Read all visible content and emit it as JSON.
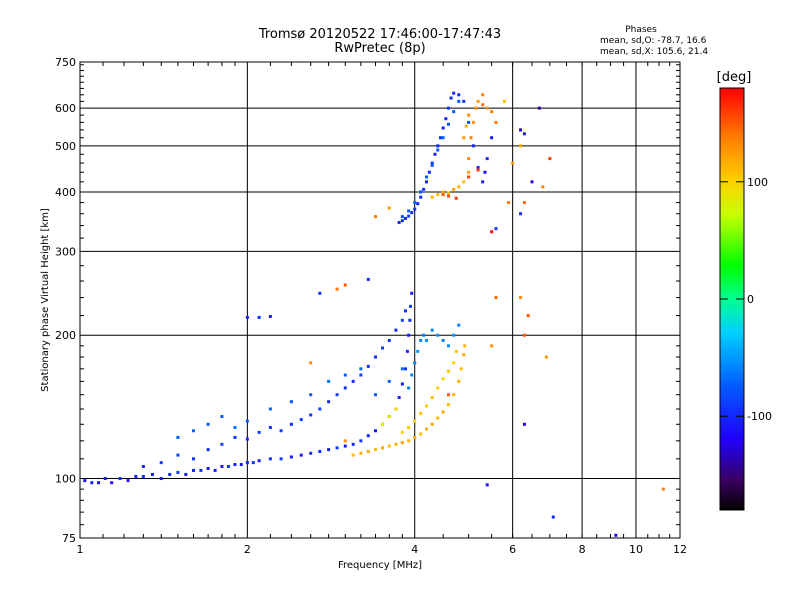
{
  "title": {
    "line1": "Tromsø 20120522 17:46:00-17:47:43",
    "line2": "RwPretec (8p)"
  },
  "phases_box": {
    "heading": "Phases",
    "line1": "mean, sd,O: -78.7, 16.6",
    "line2": "mean, sd,X: 105.6, 21.4"
  },
  "colorbar": {
    "label": "[deg]",
    "tick_labels": [
      "100",
      "0",
      "-100"
    ],
    "tick_values": [
      100,
      0,
      -100
    ],
    "range": [
      -180,
      180
    ]
  },
  "chart_data": {
    "type": "scatter",
    "xlabel": "Frequency [MHz]",
    "ylabel": "Stationary phase Virtual Height [km]",
    "xscale": "log",
    "yscale": "log",
    "xlim": [
      1,
      12
    ],
    "ylim": [
      75,
      750
    ],
    "xticks": [
      1,
      2,
      4,
      6,
      8,
      10,
      12
    ],
    "xtick_labels": [
      "1",
      "2",
      "4",
      "6",
      "8",
      "10",
      "12"
    ],
    "yticks": [
      75,
      100,
      200,
      300,
      400,
      500,
      600,
      750
    ],
    "ytick_labels": [
      "75",
      "100",
      "200",
      "300",
      "400",
      "500",
      "600",
      "750"
    ],
    "grid": true,
    "color_variable": "phase [deg]",
    "series": [
      {
        "points": [
          [
            1.02,
            99,
            -110
          ],
          [
            1.05,
            98,
            -105
          ],
          [
            1.08,
            98,
            -112
          ],
          [
            1.11,
            100,
            -108
          ],
          [
            1.14,
            98,
            -115
          ],
          [
            1.18,
            100,
            -100
          ],
          [
            1.22,
            99,
            -110
          ],
          [
            1.26,
            101,
            -105
          ],
          [
            1.3,
            101,
            -95
          ],
          [
            1.35,
            102,
            -108
          ],
          [
            1.4,
            100,
            -112
          ],
          [
            1.45,
            102,
            -100
          ],
          [
            1.5,
            103,
            -90
          ],
          [
            1.55,
            102,
            -110
          ],
          [
            1.6,
            104,
            -105
          ],
          [
            1.65,
            104,
            -95
          ],
          [
            1.7,
            105,
            -112
          ],
          [
            1.75,
            104,
            -100
          ],
          [
            1.8,
            106,
            -108
          ],
          [
            1.85,
            106,
            -90
          ],
          [
            1.9,
            107,
            -105
          ],
          [
            1.95,
            107,
            -110
          ],
          [
            2.0,
            108,
            -100
          ],
          [
            2.05,
            108,
            -95
          ],
          [
            2.1,
            109,
            -108
          ],
          [
            2.2,
            110,
            -100
          ],
          [
            2.3,
            110,
            -90
          ],
          [
            2.4,
            111,
            -105
          ],
          [
            2.5,
            112,
            -110
          ],
          [
            2.6,
            113,
            -100
          ],
          [
            2.7,
            114,
            -95
          ],
          [
            2.8,
            115,
            -105
          ],
          [
            2.9,
            116,
            -90
          ],
          [
            3.0,
            117,
            -108
          ],
          [
            3.1,
            118,
            -100
          ],
          [
            3.2,
            120,
            -95
          ],
          [
            3.3,
            123,
            -105
          ],
          [
            3.4,
            126,
            -110
          ],
          [
            3.5,
            130,
            -100
          ],
          [
            3.6,
            135,
            -95
          ],
          [
            3.7,
            140,
            -108
          ],
          [
            3.75,
            148,
            -100
          ],
          [
            3.8,
            158,
            -105
          ],
          [
            3.85,
            170,
            -95
          ],
          [
            3.88,
            185,
            -100
          ],
          [
            3.9,
            200,
            -108
          ],
          [
            3.92,
            215,
            -100
          ],
          [
            3.93,
            230,
            -90
          ],
          [
            3.95,
            245,
            -105
          ],
          [
            1.3,
            106,
            -100
          ],
          [
            1.4,
            108,
            -90
          ],
          [
            1.5,
            112,
            -85
          ],
          [
            1.6,
            110,
            -95
          ],
          [
            1.7,
            115,
            -100
          ],
          [
            1.8,
            118,
            -88
          ],
          [
            1.9,
            122,
            -95
          ],
          [
            2.0,
            121,
            -100
          ],
          [
            2.1,
            125,
            -90
          ],
          [
            2.2,
            128,
            -95
          ],
          [
            2.3,
            126,
            -85
          ],
          [
            2.4,
            130,
            -100
          ],
          [
            2.5,
            133,
            -92
          ],
          [
            2.6,
            136,
            -95
          ],
          [
            2.7,
            140,
            -88
          ],
          [
            2.8,
            145,
            -100
          ],
          [
            2.9,
            150,
            -90
          ],
          [
            3.0,
            155,
            -95
          ],
          [
            3.1,
            160,
            -100
          ],
          [
            3.2,
            165,
            -85
          ],
          [
            3.3,
            172,
            -95
          ],
          [
            3.4,
            180,
            -100
          ],
          [
            3.5,
            188,
            -90
          ],
          [
            3.6,
            195,
            -95
          ],
          [
            3.7,
            205,
            -100
          ],
          [
            3.8,
            215,
            -88
          ],
          [
            3.85,
            225,
            -95
          ],
          [
            1.5,
            122,
            -75
          ],
          [
            1.6,
            126,
            -70
          ],
          [
            1.7,
            130,
            -80
          ],
          [
            1.8,
            135,
            -72
          ],
          [
            1.9,
            128,
            -65
          ],
          [
            2.0,
            132,
            -75
          ],
          [
            2.2,
            140,
            -70
          ],
          [
            2.4,
            145,
            -80
          ],
          [
            2.6,
            150,
            -72
          ],
          [
            2.8,
            160,
            -68
          ],
          [
            3.0,
            165,
            -75
          ],
          [
            3.2,
            170,
            -70
          ],
          [
            3.4,
            150,
            -80
          ],
          [
            3.6,
            160,
            -72
          ],
          [
            3.8,
            170,
            -65
          ],
          [
            2.0,
            218,
            -100
          ],
          [
            2.1,
            218,
            -95
          ],
          [
            2.2,
            219,
            -105
          ],
          [
            3.3,
            262,
            -100
          ],
          [
            2.7,
            245,
            -95
          ],
          [
            3.9,
            155,
            -60
          ],
          [
            3.95,
            165,
            -55
          ],
          [
            4.0,
            175,
            -60
          ],
          [
            4.05,
            185,
            -50
          ],
          [
            4.1,
            195,
            -55
          ],
          [
            4.15,
            200,
            -60
          ],
          [
            4.2,
            195,
            -55
          ],
          [
            4.3,
            205,
            -58
          ],
          [
            4.4,
            200,
            -52
          ],
          [
            4.5,
            195,
            -60
          ],
          [
            4.6,
            190,
            -55
          ],
          [
            4.7,
            200,
            -50
          ],
          [
            4.8,
            210,
            -58
          ],
          [
            3.75,
            345,
            -100
          ],
          [
            3.8,
            348,
            -95
          ],
          [
            3.85,
            352,
            -105
          ],
          [
            3.9,
            356,
            -90
          ],
          [
            3.95,
            362,
            -100
          ],
          [
            4.0,
            368,
            -95
          ],
          [
            4.05,
            378,
            -105
          ],
          [
            4.1,
            390,
            -100
          ],
          [
            4.15,
            405,
            -95
          ],
          [
            4.2,
            420,
            -105
          ],
          [
            4.25,
            440,
            -100
          ],
          [
            4.3,
            460,
            -95
          ],
          [
            4.35,
            480,
            -105
          ],
          [
            4.4,
            500,
            -100
          ],
          [
            4.45,
            520,
            -95
          ],
          [
            4.5,
            545,
            -105
          ],
          [
            4.55,
            570,
            -100
          ],
          [
            4.6,
            600,
            -95
          ],
          [
            4.65,
            630,
            -100
          ],
          [
            4.7,
            645,
            -105
          ],
          [
            4.8,
            640,
            -100
          ],
          [
            4.9,
            620,
            -95
          ],
          [
            3.8,
            355,
            -80
          ],
          [
            3.9,
            365,
            -75
          ],
          [
            4.0,
            380,
            -70
          ],
          [
            4.1,
            400,
            -78
          ],
          [
            4.2,
            430,
            -72
          ],
          [
            4.3,
            455,
            -80
          ],
          [
            4.4,
            490,
            -75
          ],
          [
            4.5,
            520,
            -70
          ],
          [
            4.6,
            555,
            -78
          ],
          [
            4.7,
            590,
            -72
          ],
          [
            4.8,
            620,
            -75
          ],
          [
            5.0,
            560,
            -80
          ],
          [
            5.1,
            500,
            -100
          ],
          [
            5.2,
            450,
            -110
          ],
          [
            5.3,
            420,
            -105
          ],
          [
            5.4,
            470,
            -100
          ],
          [
            5.5,
            520,
            -108
          ],
          [
            5.35,
            440,
            -112
          ],
          [
            6.2,
            540,
            -130
          ],
          [
            6.3,
            530,
            -110
          ],
          [
            6.5,
            420,
            -125
          ],
          [
            6.7,
            600,
            -140
          ],
          [
            6.2,
            360,
            -100
          ],
          [
            5.6,
            335,
            -90
          ],
          [
            6.3,
            130,
            -120
          ],
          [
            5.4,
            97,
            -110
          ],
          [
            9.2,
            76,
            -125
          ],
          [
            7.1,
            83,
            -100
          ]
        ]
      },
      {
        "points": [
          [
            3.1,
            112,
            110
          ],
          [
            3.2,
            113,
            115
          ],
          [
            3.3,
            114,
            120
          ],
          [
            3.4,
            115,
            112
          ],
          [
            3.5,
            116,
            118
          ],
          [
            3.6,
            117,
            110
          ],
          [
            3.7,
            118,
            115
          ],
          [
            3.8,
            119,
            120
          ],
          [
            3.9,
            120,
            112
          ],
          [
            4.0,
            122,
            118
          ],
          [
            4.1,
            124,
            110
          ],
          [
            4.2,
            127,
            115
          ],
          [
            4.3,
            130,
            120
          ],
          [
            4.4,
            134,
            112
          ],
          [
            4.5,
            138,
            118
          ],
          [
            4.6,
            143,
            110
          ],
          [
            4.7,
            150,
            115
          ],
          [
            4.8,
            160,
            120
          ],
          [
            4.85,
            170,
            112
          ],
          [
            4.9,
            182,
            118
          ],
          [
            4.92,
            190,
            115
          ],
          [
            3.8,
            125,
            100
          ],
          [
            3.9,
            128,
            105
          ],
          [
            4.0,
            132,
            95
          ],
          [
            4.1,
            137,
            108
          ],
          [
            4.2,
            142,
            100
          ],
          [
            4.3,
            148,
            110
          ],
          [
            4.4,
            155,
            102
          ],
          [
            4.5,
            162,
            98
          ],
          [
            4.6,
            168,
            105
          ],
          [
            4.7,
            175,
            100
          ],
          [
            4.75,
            185,
            108
          ],
          [
            3.6,
            135,
            90
          ],
          [
            3.7,
            140,
            95
          ],
          [
            3.5,
            130,
            85
          ],
          [
            4.3,
            390,
            115
          ],
          [
            4.4,
            395,
            110
          ],
          [
            4.5,
            400,
            120
          ],
          [
            4.6,
            398,
            112
          ],
          [
            4.7,
            405,
            118
          ],
          [
            4.8,
            410,
            115
          ],
          [
            4.9,
            420,
            108
          ],
          [
            5.0,
            440,
            120
          ],
          [
            5.0,
            470,
            130
          ],
          [
            5.05,
            520,
            135
          ],
          [
            5.1,
            560,
            128
          ],
          [
            5.15,
            600,
            132
          ],
          [
            5.2,
            620,
            125
          ],
          [
            5.3,
            610,
            140
          ],
          [
            5.4,
            600,
            130
          ],
          [
            5.5,
            590,
            135
          ],
          [
            4.9,
            520,
            125
          ],
          [
            4.95,
            550,
            120
          ],
          [
            5.0,
            580,
            130
          ],
          [
            5.3,
            640,
            138
          ],
          [
            5.6,
            560,
            140
          ],
          [
            4.5,
            395,
            150
          ],
          [
            4.6,
            392,
            155
          ],
          [
            4.75,
            388,
            160
          ],
          [
            5.5,
            330,
            175
          ],
          [
            2.9,
            250,
            140
          ],
          [
            3.0,
            255,
            150
          ],
          [
            5.6,
            240,
            145
          ],
          [
            5.5,
            190,
            130
          ],
          [
            6.2,
            240,
            132
          ],
          [
            6.4,
            220,
            150
          ],
          [
            6.8,
            410,
            135
          ],
          [
            6.3,
            380,
            145
          ],
          [
            5.9,
            380,
            140
          ],
          [
            6.3,
            200,
            150
          ],
          [
            6.9,
            180,
            128
          ],
          [
            7.0,
            470,
            160
          ],
          [
            5.2,
            445,
            165
          ],
          [
            5.0,
            430,
            160
          ],
          [
            4.6,
            150,
            150
          ],
          [
            3.4,
            355,
            140
          ],
          [
            2.6,
            175,
            135
          ],
          [
            3.0,
            120,
            130
          ],
          [
            11.2,
            95,
            140
          ],
          [
            6.2,
            500,
            120
          ],
          [
            3.6,
            370,
            130
          ],
          [
            5.8,
            620,
            110
          ],
          [
            6.0,
            460,
            125
          ]
        ]
      }
    ]
  }
}
